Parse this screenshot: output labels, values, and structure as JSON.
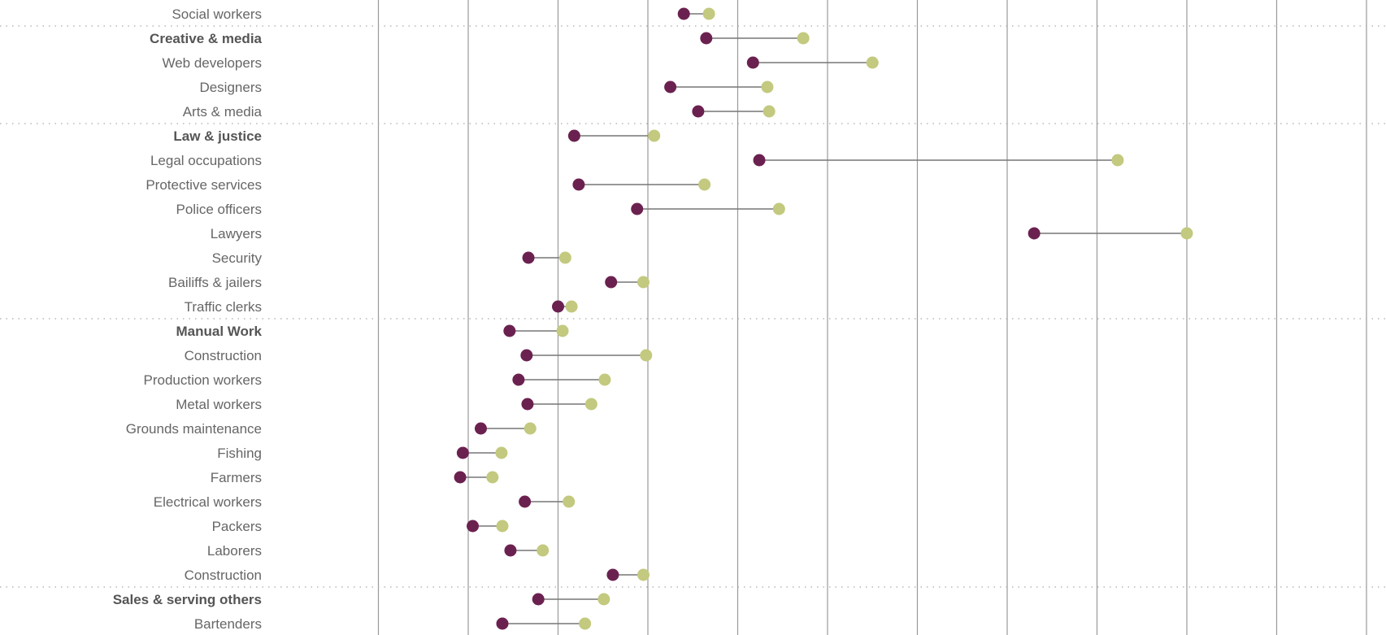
{
  "chart_data": {
    "type": "dumbbell",
    "title": "",
    "xlabel": "",
    "ylabel": "",
    "grid": true,
    "xlim": [
      -1.5,
      11.5
    ],
    "colors": {
      "series_a": "#6b2150",
      "series_b": "#c3c97e",
      "connector": "#777777",
      "gridline": "#9a9a9a",
      "separator": "#aaaaaa"
    },
    "rows": [
      {
        "label": "Social workers",
        "group": false,
        "a": 2.4,
        "b": 2.68
      },
      {
        "label": "Creative & media",
        "group": true,
        "a": 2.65,
        "b": 3.73
      },
      {
        "label": "Web developers",
        "group": false,
        "a": 3.17,
        "b": 4.5
      },
      {
        "label": "Designers",
        "group": false,
        "a": 2.25,
        "b": 3.33
      },
      {
        "label": "Arts & media",
        "group": false,
        "a": 2.56,
        "b": 3.35
      },
      {
        "label": "Law & justice",
        "group": true,
        "a": 1.18,
        "b": 2.07
      },
      {
        "label": "Legal occupations",
        "group": false,
        "a": 3.24,
        "b": 7.23
      },
      {
        "label": "Protective services",
        "group": false,
        "a": 1.23,
        "b": 2.63
      },
      {
        "label": "Police officers",
        "group": false,
        "a": 1.88,
        "b": 3.46
      },
      {
        "label": "Lawyers",
        "group": false,
        "a": 6.3,
        "b": 8.0
      },
      {
        "label": "Security",
        "group": false,
        "a": 0.67,
        "b": 1.08
      },
      {
        "label": "Bailiffs & jailers",
        "group": false,
        "a": 1.59,
        "b": 1.95
      },
      {
        "label": "Traffic clerks",
        "group": false,
        "a": 1.0,
        "b": 1.15
      },
      {
        "label": "Manual Work",
        "group": true,
        "a": 0.46,
        "b": 1.05
      },
      {
        "label": "Construction",
        "group": false,
        "a": 0.65,
        "b": 1.98
      },
      {
        "label": "Production workers",
        "group": false,
        "a": 0.56,
        "b": 1.52
      },
      {
        "label": "Metal workers",
        "group": false,
        "a": 0.66,
        "b": 1.37
      },
      {
        "label": "Grounds maintenance",
        "group": false,
        "a": 0.14,
        "b": 0.69
      },
      {
        "label": "Fishing",
        "group": false,
        "a": -0.06,
        "b": 0.37
      },
      {
        "label": "Farmers",
        "group": false,
        "a": -0.09,
        "b": 0.27
      },
      {
        "label": "Electrical workers",
        "group": false,
        "a": 0.63,
        "b": 1.12
      },
      {
        "label": "Packers",
        "group": false,
        "a": 0.05,
        "b": 0.38
      },
      {
        "label": "Laborers",
        "group": false,
        "a": 0.47,
        "b": 0.83
      },
      {
        "label": "Construction",
        "group": false,
        "a": 1.61,
        "b": 1.95
      },
      {
        "label": "Sales & serving others",
        "group": true,
        "a": 0.78,
        "b": 1.51
      },
      {
        "label": "Bartenders",
        "group": false,
        "a": 0.38,
        "b": 1.3
      }
    ]
  }
}
